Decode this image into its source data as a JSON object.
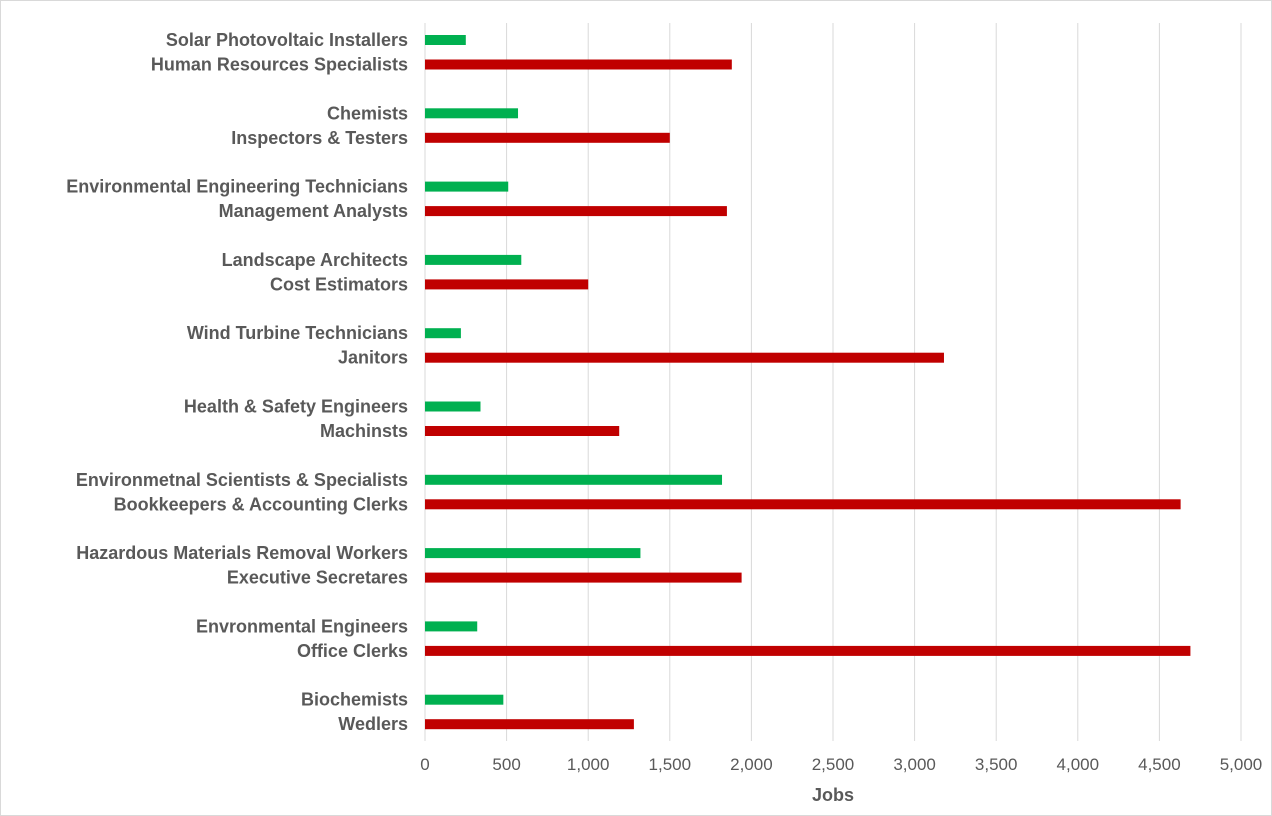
{
  "chart_data": {
    "type": "bar",
    "orientation": "horizontal",
    "xlabel": "Jobs",
    "xlim": [
      0,
      5000
    ],
    "ticks": [
      0,
      500,
      1000,
      1500,
      2000,
      2500,
      3000,
      3500,
      4000,
      4500,
      5000
    ],
    "tick_labels": [
      "0",
      "500",
      "1,000",
      "1,500",
      "2,000",
      "2,500",
      "3,000",
      "3,500",
      "4,000",
      "4,500",
      "5,000"
    ],
    "grid": "vertical",
    "legend": "none",
    "colors": {
      "green": "#00b050",
      "red": "#c00000",
      "grid": "#d9d9d9",
      "text": "#595959"
    },
    "bars": [
      {
        "label": "Solar Photovoltaic Installers",
        "value": 250,
        "group": "green"
      },
      {
        "label": "Human Resources Specialists",
        "value": 1880,
        "group": "red"
      },
      {
        "label": "Chemists",
        "value": 570,
        "group": "green"
      },
      {
        "label": "Inspectors & Testers",
        "value": 1500,
        "group": "red"
      },
      {
        "label": "Environmental Engineering Technicians",
        "value": 510,
        "group": "green"
      },
      {
        "label": "Management Analysts",
        "value": 1850,
        "group": "red"
      },
      {
        "label": "Landscape Architects",
        "value": 590,
        "group": "green"
      },
      {
        "label": "Cost Estimators",
        "value": 1000,
        "group": "red"
      },
      {
        "label": "Wind Turbine Technicians",
        "value": 220,
        "group": "green"
      },
      {
        "label": "Janitors",
        "value": 3180,
        "group": "red"
      },
      {
        "label": "Health & Safety Engineers",
        "value": 340,
        "group": "green"
      },
      {
        "label": "Machinsts",
        "value": 1190,
        "group": "red"
      },
      {
        "label": "Environmetnal Scientists & Specialists",
        "value": 1820,
        "group": "green"
      },
      {
        "label": "Bookkeepers & Accounting Clerks",
        "value": 4630,
        "group": "red"
      },
      {
        "label": "Hazardous Materials Removal Workers",
        "value": 1320,
        "group": "green"
      },
      {
        "label": "Executive Secretares",
        "value": 1940,
        "group": "red"
      },
      {
        "label": "Envronmental Engineers",
        "value": 320,
        "group": "green"
      },
      {
        "label": "Office Clerks",
        "value": 4690,
        "group": "red"
      },
      {
        "label": "Biochemists",
        "value": 480,
        "group": "green"
      },
      {
        "label": "Wedlers",
        "value": 1280,
        "group": "red"
      }
    ]
  }
}
